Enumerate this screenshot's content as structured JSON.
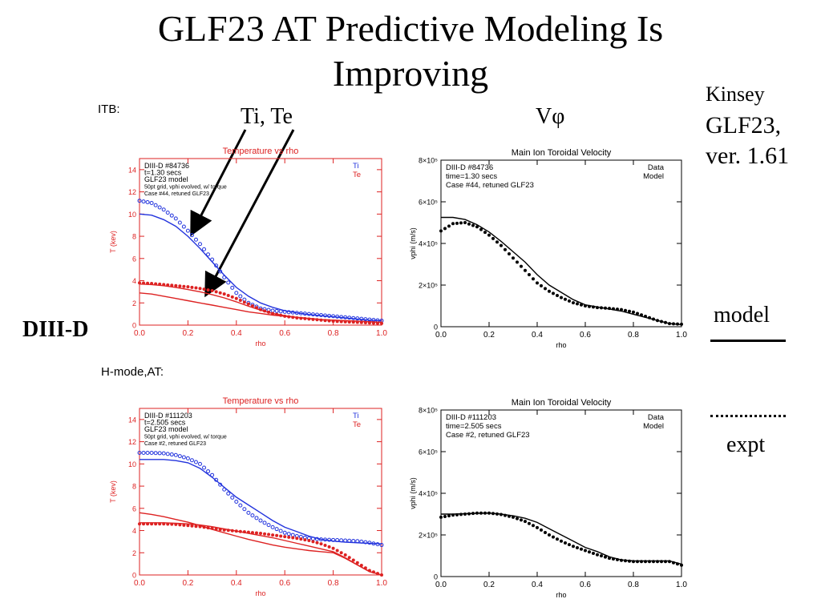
{
  "slide": {
    "title_line1": "GLF23 AT Predictive Modeling Is",
    "title_line2": "Improving",
    "author": "Kinsey",
    "code_name": "GLF23,",
    "code_version": "ver. 1.61",
    "label_itb": "ITB:",
    "label_hmode": "H-mode,AT:",
    "label_device": "DIII-D",
    "annot_ti_te": "Ti, Te",
    "annot_vphi": "Vφ",
    "legend_model": "model",
    "legend_expt": "expt"
  },
  "colors": {
    "ti": "#2233dd",
    "te": "#dd2222",
    "frame_temp": "#dd2222",
    "frame_vel": "#000000"
  },
  "chart_data": [
    {
      "type": "line",
      "title": "Temperature vs rho",
      "xlabel": "rho",
      "ylabel": "T (kev)",
      "xlim": [
        0,
        1
      ],
      "ylim": [
        0,
        15
      ],
      "xticks": [
        "0.0",
        "0.2",
        "0.4",
        "0.6",
        "0.8",
        "1.0"
      ],
      "yticks": [
        "0",
        "2",
        "4",
        "6",
        "8",
        "10",
        "12",
        "14"
      ],
      "info": [
        "DIII-D #84736",
        "t=1.30 secs",
        "GLF23 model",
        "50pt grid, vphi evolved, w/ torque",
        "Case #44, retuned GLF23"
      ],
      "legend": [
        "Ti",
        "Te"
      ],
      "x": [
        0,
        0.05,
        0.1,
        0.15,
        0.2,
        0.25,
        0.3,
        0.35,
        0.4,
        0.45,
        0.5,
        0.55,
        0.6,
        0.65,
        0.7,
        0.75,
        0.8,
        0.85,
        0.9,
        0.95,
        1.0
      ],
      "series": [
        {
          "name": "Ti",
          "kind": "model",
          "values": [
            10.0,
            9.9,
            9.5,
            8.9,
            8.0,
            6.9,
            5.7,
            4.5,
            3.4,
            2.6,
            2.0,
            1.6,
            1.3,
            1.1,
            0.95,
            0.85,
            0.75,
            0.65,
            0.55,
            0.45,
            0.4
          ]
        },
        {
          "name": "Ti",
          "kind": "expt",
          "values": [
            11.2,
            11.0,
            10.4,
            9.6,
            8.5,
            7.3,
            5.9,
            4.3,
            2.9,
            2.0,
            1.5,
            1.3,
            1.2,
            1.1,
            1.0,
            0.9,
            0.8,
            0.7,
            0.6,
            0.5,
            0.4
          ]
        },
        {
          "name": "Te",
          "kind": "model",
          "values": [
            2.9,
            2.8,
            2.6,
            2.4,
            2.2,
            2.0,
            1.8,
            1.6,
            1.4,
            1.2,
            1.05,
            0.9,
            0.8,
            0.7,
            0.6,
            0.5,
            0.45,
            0.4,
            0.35,
            0.3,
            0.25
          ]
        },
        {
          "name": "Te",
          "kind": "model",
          "values": [
            3.7,
            3.65,
            3.55,
            3.4,
            3.2,
            3.0,
            2.75,
            2.45,
            2.1,
            1.7,
            1.35,
            1.05,
            0.85,
            0.7,
            0.6,
            0.5,
            0.45,
            0.4,
            0.35,
            0.3,
            0.25
          ]
        },
        {
          "name": "Te",
          "kind": "expt",
          "values": [
            3.8,
            3.75,
            3.65,
            3.55,
            3.45,
            3.3,
            3.1,
            2.8,
            2.4,
            1.9,
            1.4,
            1.05,
            0.8,
            0.65,
            0.55,
            0.45,
            0.35,
            0.3,
            0.25,
            0.2,
            0.15
          ]
        }
      ]
    },
    {
      "type": "line",
      "title": "Main Ion Toroidal Velocity",
      "xlabel": "rho",
      "ylabel": "vphi (m/s)",
      "xlim": [
        0,
        1
      ],
      "ylim": [
        0,
        800000
      ],
      "xticks": [
        "0.0",
        "0.2",
        "0.4",
        "0.6",
        "0.8",
        "1.0"
      ],
      "yticks": [
        "0",
        "2×10⁵",
        "4×10⁵",
        "6×10⁵",
        "8×10⁵"
      ],
      "info": [
        "DIII-D #84736",
        "time=1.30 secs",
        "Case #44, retuned GLF23"
      ],
      "legend": [
        "Data",
        "Model"
      ],
      "x": [
        0,
        0.05,
        0.1,
        0.15,
        0.2,
        0.25,
        0.3,
        0.35,
        0.4,
        0.45,
        0.5,
        0.55,
        0.6,
        0.65,
        0.7,
        0.75,
        0.8,
        0.85,
        0.9,
        0.95,
        1.0
      ],
      "series": [
        {
          "name": "Model",
          "kind": "model",
          "values": [
            525000,
            525000,
            515000,
            490000,
            455000,
            410000,
            360000,
            310000,
            250000,
            200000,
            165000,
            130000,
            105000,
            95000,
            85000,
            75000,
            60000,
            45000,
            30000,
            15000,
            10000
          ]
        },
        {
          "name": "Data",
          "kind": "expt",
          "values": [
            460000,
            495000,
            500000,
            480000,
            440000,
            390000,
            330000,
            270000,
            210000,
            170000,
            140000,
            115000,
            100000,
            92000,
            88000,
            82000,
            70000,
            50000,
            30000,
            15000,
            12000
          ]
        }
      ]
    },
    {
      "type": "line",
      "title": "Temperature vs rho",
      "xlabel": "rho",
      "ylabel": "T (kev)",
      "xlim": [
        0,
        1
      ],
      "ylim": [
        0,
        15
      ],
      "xticks": [
        "0.0",
        "0.2",
        "0.4",
        "0.6",
        "0.8",
        "1.0"
      ],
      "yticks": [
        "0",
        "2",
        "4",
        "6",
        "8",
        "10",
        "12",
        "14"
      ],
      "info": [
        "DIII-D #111203",
        "t=2.505 secs",
        "GLF23 model",
        "50pt grid, vphi evolved, w/ torque",
        "Case #2, retuned GLF23"
      ],
      "legend": [
        "Ti",
        "Te"
      ],
      "x": [
        0,
        0.05,
        0.1,
        0.15,
        0.2,
        0.25,
        0.3,
        0.35,
        0.4,
        0.45,
        0.5,
        0.55,
        0.6,
        0.65,
        0.7,
        0.75,
        0.8,
        0.85,
        0.9,
        0.95,
        1.0
      ],
      "series": [
        {
          "name": "Ti",
          "kind": "model",
          "values": [
            10.4,
            10.4,
            10.4,
            10.3,
            10.1,
            9.6,
            8.8,
            7.9,
            7.0,
            6.3,
            5.6,
            4.9,
            4.3,
            3.9,
            3.5,
            3.2,
            3.05,
            2.95,
            2.9,
            2.85,
            2.8
          ]
        },
        {
          "name": "Ti",
          "kind": "expt",
          "values": [
            11.0,
            11.0,
            10.95,
            10.8,
            10.5,
            10.0,
            9.0,
            7.7,
            6.6,
            5.6,
            4.9,
            4.3,
            3.8,
            3.5,
            3.3,
            3.2,
            3.15,
            3.1,
            3.05,
            2.9,
            2.7
          ]
        },
        {
          "name": "Te",
          "kind": "model",
          "values": [
            5.6,
            5.45,
            5.25,
            5.0,
            4.75,
            4.45,
            4.1,
            3.8,
            3.5,
            3.2,
            2.95,
            2.7,
            2.5,
            2.35,
            2.2,
            2.1,
            2.0,
            1.5,
            0.9,
            0.3,
            0.0
          ]
        },
        {
          "name": "Te",
          "kind": "model",
          "values": [
            4.7,
            4.7,
            4.7,
            4.65,
            4.6,
            4.5,
            4.35,
            4.15,
            3.95,
            3.75,
            3.55,
            3.35,
            3.1,
            2.85,
            2.6,
            2.35,
            2.1,
            1.55,
            0.9,
            0.3,
            0.0
          ]
        },
        {
          "name": "Te",
          "kind": "expt",
          "values": [
            4.6,
            4.6,
            4.6,
            4.55,
            4.45,
            4.35,
            4.2,
            4.05,
            3.95,
            3.85,
            3.75,
            3.6,
            3.45,
            3.3,
            3.1,
            2.8,
            2.4,
            1.8,
            1.1,
            0.4,
            0.0
          ]
        }
      ]
    },
    {
      "type": "line",
      "title": "Main Ion Toroidal Velocity",
      "xlabel": "rho",
      "ylabel": "vphi (m/s)",
      "xlim": [
        0,
        1
      ],
      "ylim": [
        0,
        800000
      ],
      "xticks": [
        "0.0",
        "0.2",
        "0.4",
        "0.6",
        "0.8",
        "1.0"
      ],
      "yticks": [
        "0",
        "2×10⁵",
        "4×10⁵",
        "6×10⁵",
        "8×10⁵"
      ],
      "info": [
        "DIII-D #111203",
        "time=2.505 secs",
        "Case #2, retuned GLF23"
      ],
      "legend": [
        "Data",
        "Model"
      ],
      "x": [
        0,
        0.05,
        0.1,
        0.15,
        0.2,
        0.25,
        0.3,
        0.35,
        0.4,
        0.45,
        0.5,
        0.55,
        0.6,
        0.65,
        0.7,
        0.75,
        0.8,
        0.85,
        0.9,
        0.95,
        1.0
      ],
      "series": [
        {
          "name": "Model",
          "kind": "model",
          "values": [
            300000,
            300000,
            302000,
            304000,
            305000,
            300000,
            292000,
            280000,
            260000,
            230000,
            200000,
            170000,
            140000,
            120000,
            95000,
            80000,
            75000,
            75000,
            75000,
            75000,
            60000
          ]
        },
        {
          "name": "Data",
          "kind": "expt",
          "values": [
            285000,
            295000,
            300000,
            305000,
            305000,
            298000,
            285000,
            265000,
            235000,
            200000,
            170000,
            145000,
            125000,
            105000,
            88000,
            78000,
            72000,
            72000,
            72000,
            72000,
            55000
          ]
        }
      ]
    }
  ]
}
